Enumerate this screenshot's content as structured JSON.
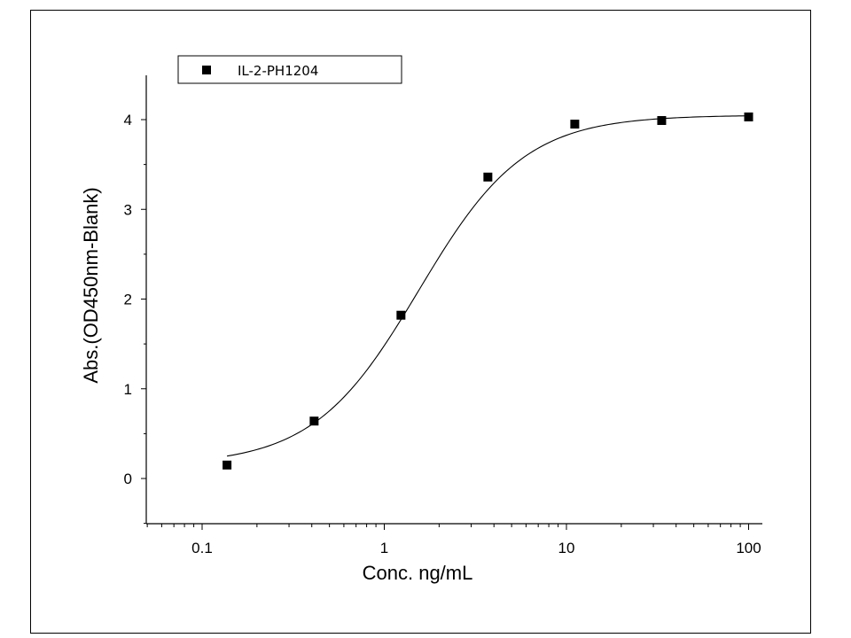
{
  "chart_data": {
    "type": "scatter",
    "x_scale": "log",
    "xlabel": "Conc. ng/mL",
    "ylabel": "Abs.(OD450nm-Blank)",
    "xlim": [
      0.05,
      120
    ],
    "ylim": [
      -0.5,
      4.5
    ],
    "x_ticks": [
      {
        "value": 0.1,
        "label": "0.1"
      },
      {
        "value": 1,
        "label": "1"
      },
      {
        "value": 10,
        "label": "10"
      },
      {
        "value": 100,
        "label": "100"
      }
    ],
    "y_ticks": [
      {
        "value": 0,
        "label": "0"
      },
      {
        "value": 1,
        "label": "1"
      },
      {
        "value": 2,
        "label": "2"
      },
      {
        "value": 3,
        "label": "3"
      },
      {
        "value": 4,
        "label": "4"
      }
    ],
    "grid": false,
    "legend_position": "top-left",
    "series": [
      {
        "name": "IL-2-PH1204",
        "marker": "square",
        "color": "#000000",
        "x": [
          0.137,
          0.412,
          1.235,
          3.704,
          11.11,
          33.33,
          100
        ],
        "y": [
          0.15,
          0.64,
          1.82,
          3.36,
          3.95,
          3.99,
          4.03
        ]
      }
    ],
    "fit_curve": {
      "model": "4PL",
      "color": "#000000",
      "bottom": 0.15,
      "top": 4.05,
      "ec50": 1.55,
      "hill": 1.5
    }
  }
}
